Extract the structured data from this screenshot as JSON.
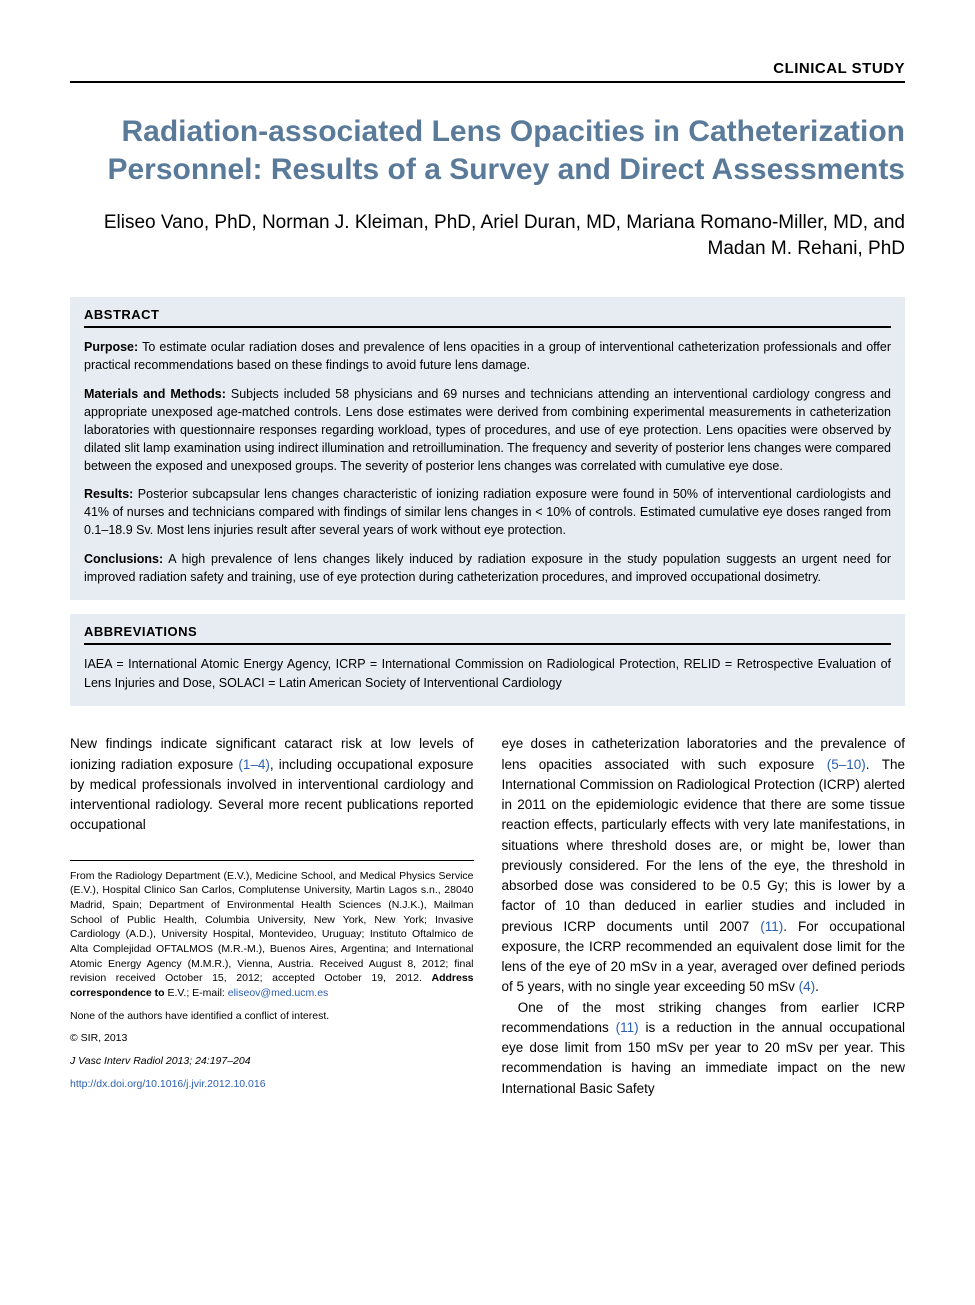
{
  "header": {
    "label": "CLINICAL STUDY"
  },
  "title": "Radiation-associated Lens Opacities in Catheterization Personnel: Results of a Survey and Direct Assessments",
  "authors": "Eliseo Vano, PhD, Norman J. Kleiman, PhD, Ariel Duran, MD, Mariana Romano-Miller, MD, and Madan M. Rehani, PhD",
  "abstract": {
    "heading": "ABSTRACT",
    "purpose_label": "Purpose:",
    "purpose": " To estimate ocular radiation doses and prevalence of lens opacities in a group of interventional catheterization professionals and offer practical recommendations based on these findings to avoid future lens damage.",
    "methods_label": "Materials and Methods:",
    "methods": " Subjects included 58 physicians and 69 nurses and technicians attending an interventional cardiology congress and appropriate unexposed age-matched controls. Lens dose estimates were derived from combining experimental measurements in catheterization laboratories with questionnaire responses regarding workload, types of procedures, and use of eye protection. Lens opacities were observed by dilated slit lamp examination using indirect illumination and retroillumination. The frequency and severity of posterior lens changes were compared between the exposed and unexposed groups. The severity of posterior lens changes was correlated with cumulative eye dose.",
    "results_label": "Results:",
    "results": " Posterior subcapsular lens changes characteristic of ionizing radiation exposure were found in 50% of interventional cardiologists and 41% of nurses and technicians compared with findings of similar lens changes in < 10% of controls. Estimated cumulative eye doses ranged from 0.1–18.9 Sv. Most lens injuries result after several years of work without eye protection.",
    "conclusions_label": "Conclusions:",
    "conclusions": " A high prevalence of lens changes likely induced by radiation exposure in the study population suggests an urgent need for improved radiation safety and training, use of eye protection during catheterization procedures, and improved occupational dosimetry."
  },
  "abbreviations": {
    "heading": "ABBREVIATIONS",
    "text": "IAEA = International Atomic Energy Agency, ICRP = International Commission on Radiological Protection, RELID = Retrospective Evaluation of Lens Injuries and Dose, SOLACI = Latin American Society of Interventional Cardiology"
  },
  "body": {
    "col1_p1_a": "New findings indicate significant cataract risk at low levels of ionizing radiation exposure ",
    "col1_p1_ref1": "(1–4)",
    "col1_p1_b": ", including occupational exposure by medical professionals involved in interventional cardiology and interventional radiology. Several more recent publications reported occupational",
    "col2_p1_a": "eye doses in catheterization laboratories and the prevalence of lens opacities associated with such exposure ",
    "col2_p1_ref1": "(5–10)",
    "col2_p1_b": ". The International Commission on Radiological Protection (ICRP) alerted in 2011 on the epidemiologic evidence that there are some tissue reaction effects, particularly effects with very late manifestations, in situations where threshold doses are, or might be, lower than previously considered. For the lens of the eye, the threshold in absorbed dose was considered to be 0.5 Gy; this is lower by a factor of 10 than deduced in earlier studies and included in previous ICRP documents until 2007 ",
    "col2_p1_ref2": "(11)",
    "col2_p1_c": ". For occupational exposure, the ICRP recommended an equivalent dose limit for the lens of the eye of 20 mSv in a year, averaged over defined periods of 5 years, with no single year exceeding 50 mSv ",
    "col2_p1_ref3": "(4)",
    "col2_p1_d": ".",
    "col2_p2_a": "One of the most striking changes from earlier ICRP recommendations ",
    "col2_p2_ref1": "(11)",
    "col2_p2_b": " is a reduction in the annual occupational eye dose limit from 150 mSv per year to 20 mSv per year. This recommendation is having an immediate impact on the new International Basic Safety"
  },
  "footnotes": {
    "affil_a": "From the Radiology Department (E.V.), Medicine School, and Medical Physics Service (E.V.), Hospital Clinico San Carlos, Complutense University, Martin Lagos s.n., 28040 Madrid, Spain; Department of Environmental Health Sciences (N.J.K.), Mailman School of Public Health, Columbia University, New York, New York; Invasive Cardiology (A.D.), University Hospital, Montevideo, Uruguay; Instituto Oftalmico de Alta Complejidad OFTALMOS (M.R.-M.), Buenos Aires, Argentina; and International Atomic Energy Agency (M.M.R.), Vienna, Austria. Received August 8, 2012; final revision received October 15, 2012; accepted October 19, 2012. ",
    "affil_b": "Address correspondence to",
    "affil_c": " E.V.; E-mail: ",
    "email": "eliseov@med.ucm.es",
    "conflict": "None of the authors have identified a conflict of interest.",
    "copyright": "© SIR, 2013",
    "journal": "J Vasc Interv Radiol 2013; 24:197–204",
    "doi": "http://dx.doi.org/10.1016/j.jvir.2012.10.016"
  },
  "colors": {
    "title_color": "#5a7a9a",
    "box_bg": "#e6ecf2",
    "link_color": "#2a5fb0",
    "text_color": "#000000"
  }
}
